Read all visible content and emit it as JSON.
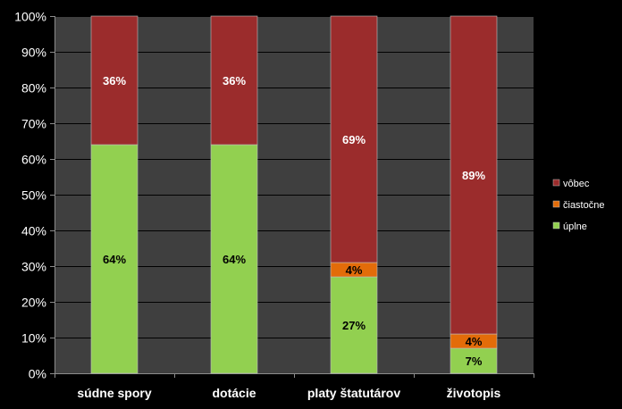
{
  "chart_data": {
    "type": "bar",
    "stacked": true,
    "percent": true,
    "categories": [
      "súdne spory",
      "dotácie",
      "platy štatutárov",
      "životopis"
    ],
    "series": [
      {
        "name": "úplne",
        "values": [
          64,
          64,
          27,
          7
        ],
        "labels": [
          "64%",
          "64%",
          "27%",
          "7%"
        ],
        "color": "#92d050",
        "label_color": "#000000"
      },
      {
        "name": "čiastočne",
        "values": [
          0,
          0,
          4,
          4
        ],
        "labels": [
          "",
          "",
          "4%",
          "4%"
        ],
        "color": "#e36c09",
        "label_color": "#000000"
      },
      {
        "name": "vôbec",
        "values": [
          36,
          36,
          69,
          89
        ],
        "labels": [
          "36%",
          "36%",
          "69%",
          "89%"
        ],
        "color": "#9b2c2c",
        "label_color": "#ffffff"
      }
    ],
    "ylim": [
      0,
      100
    ],
    "yticks": [
      "0%",
      "10%",
      "20%",
      "30%",
      "40%",
      "50%",
      "60%",
      "70%",
      "80%",
      "90%",
      "100%"
    ],
    "legend_order": [
      "vôbec",
      "čiastočne",
      "úplne"
    ],
    "legend_position": "right",
    "grid": true,
    "background": "#000000",
    "plot_background": "#3f3f3f"
  }
}
